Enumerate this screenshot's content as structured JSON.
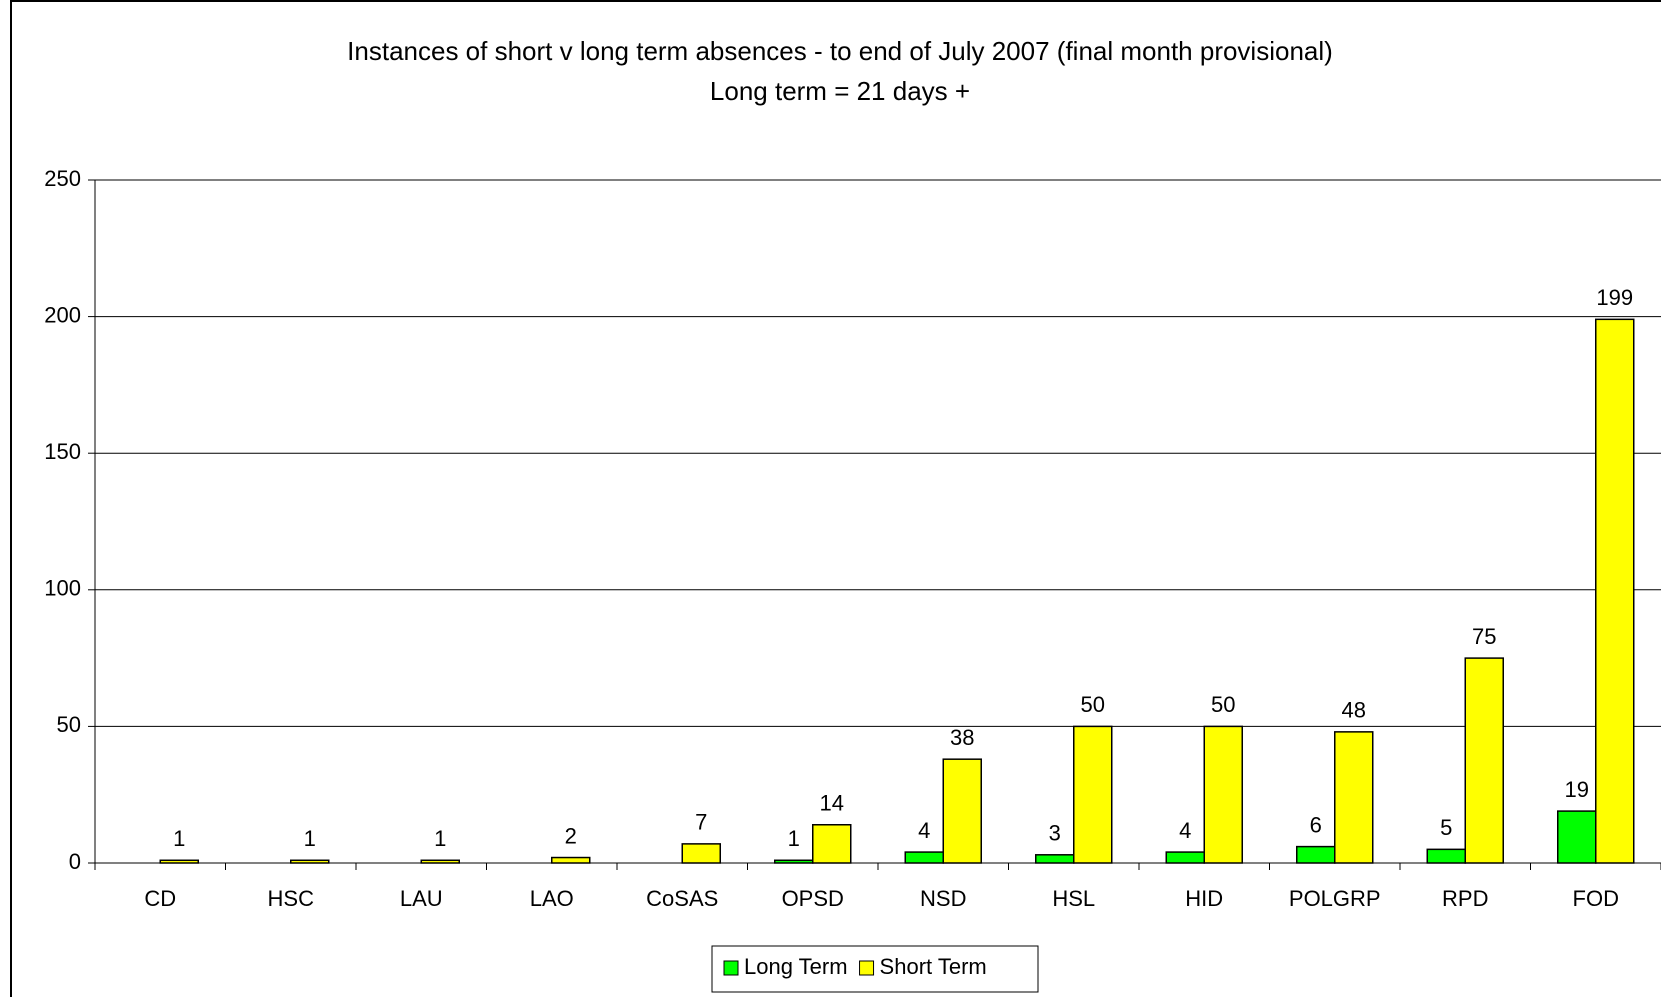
{
  "chart_data": {
    "type": "bar",
    "title": "Instances of short v long term absences - to end of July 2007 (final month provisional)",
    "subtitle": "Long term = 21 days +",
    "categories": [
      "CD",
      "HSC",
      "LAU",
      "LAO",
      "CoSAS",
      "OPSD",
      "NSD",
      "HSL",
      "HID",
      "POLGRP",
      "RPD",
      "FOD"
    ],
    "series": [
      {
        "name": "Long Term",
        "color": "#00ff00",
        "values": [
          null,
          null,
          null,
          null,
          null,
          1,
          4,
          3,
          4,
          6,
          5,
          19
        ]
      },
      {
        "name": "Short Term",
        "color": "#ffff00",
        "values": [
          1,
          1,
          1,
          2,
          7,
          14,
          38,
          50,
          50,
          48,
          75,
          199
        ]
      }
    ],
    "ylim": [
      0,
      250
    ],
    "yticks": [
      0,
      50,
      100,
      150,
      200,
      250
    ],
    "grid": true,
    "legend": "bottom"
  }
}
